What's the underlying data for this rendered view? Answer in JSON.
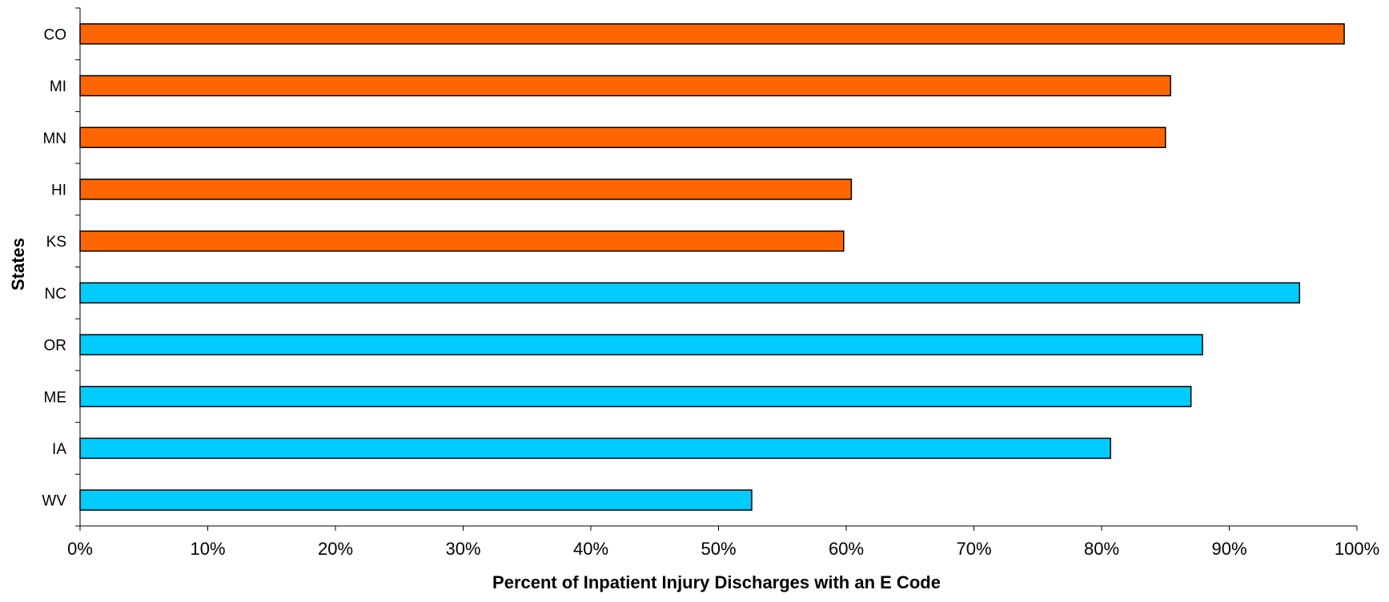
{
  "chart_data": {
    "type": "bar",
    "orientation": "horizontal",
    "categories": [
      "CO",
      "MI",
      "MN",
      "HI",
      "KS",
      "NC",
      "OR",
      "ME",
      "IA",
      "WV"
    ],
    "values": [
      99,
      85.4,
      85,
      60.4,
      59.8,
      95.5,
      87.9,
      87,
      80.7,
      52.6
    ],
    "bar_colors": [
      "#FF6600",
      "#FF6600",
      "#FF6600",
      "#FF6600",
      "#FF6600",
      "#00CCFF",
      "#00CCFF",
      "#00CCFF",
      "#00CCFF",
      "#00CCFF"
    ],
    "bar_outline_color": "#000000",
    "xlim": [
      0,
      100
    ],
    "x_ticks": [
      "0%",
      "10%",
      "20%",
      "30%",
      "40%",
      "50%",
      "60%",
      "70%",
      "80%",
      "90%",
      "100%"
    ],
    "xlabel": "Percent of Inpatient Injury Discharges with an E Code",
    "ylabel": "States",
    "grid": false,
    "legend": false
  }
}
